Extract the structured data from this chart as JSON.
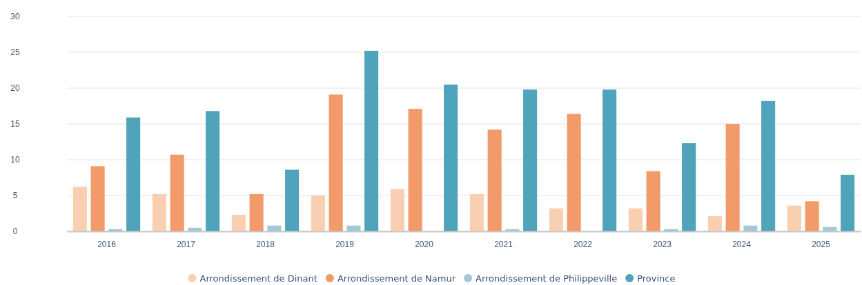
{
  "chart_data": {
    "type": "bar",
    "categories": [
      "2016",
      "2017",
      "2018",
      "2019",
      "2020",
      "2021",
      "2022",
      "2023",
      "2024",
      "2025"
    ],
    "series": [
      {
        "name": "Arrondissement de Dinant",
        "color": "#f9cfb1",
        "values": [
          6.2,
          5.2,
          2.3,
          5.0,
          5.9,
          5.2,
          3.2,
          3.2,
          2.1,
          3.6
        ]
      },
      {
        "name": "Arrondissement de Namur",
        "color": "#f29a6a",
        "values": [
          9.1,
          10.7,
          5.2,
          19.1,
          17.1,
          14.2,
          16.4,
          8.4,
          15.0,
          4.2
        ]
      },
      {
        "name": "Arrondissement de Philippeville",
        "color": "#a3c9d9",
        "values": [
          0.3,
          0.5,
          0.8,
          0.8,
          0,
          0.3,
          0,
          0.3,
          0.8,
          0.6
        ]
      },
      {
        "name": "Province",
        "color": "#4fa3bb",
        "values": [
          15.9,
          16.8,
          8.6,
          25.2,
          20.5,
          19.8,
          19.8,
          12.3,
          18.2,
          7.9
        ]
      }
    ],
    "ylim": [
      0,
      30
    ],
    "yticks": [
      0,
      5,
      10,
      15,
      20,
      25,
      30
    ],
    "grid": "y",
    "legend": "bottom"
  }
}
